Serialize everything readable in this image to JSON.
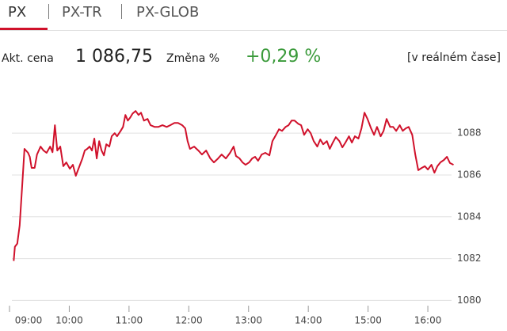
{
  "tabs": [
    "PX",
    "PX-TR",
    "PX-GLOB"
  ],
  "quote": {
    "price_label": "Akt. cena",
    "price": "1 086,75",
    "change_label": "Změna %",
    "change": "+0,29 %",
    "note": "[v reálném čase]"
  },
  "chart_data": {
    "type": "line",
    "color": "#d0112b",
    "grid": true,
    "xlim": [
      9,
      16.45
    ],
    "ylim": [
      1079.6,
      1089.9
    ],
    "xticks": [
      {
        "value": 9,
        "label": "09:00"
      },
      {
        "value": 10,
        "label": "10:00"
      },
      {
        "value": 11,
        "label": "11:00"
      },
      {
        "value": 12,
        "label": "12:00"
      },
      {
        "value": 13,
        "label": "13:00"
      },
      {
        "value": 14,
        "label": "14:00"
      },
      {
        "value": 15,
        "label": "15:00"
      },
      {
        "value": 16,
        "label": "16:00"
      }
    ],
    "yticks": [
      1080,
      1082,
      1084,
      1086,
      1088
    ],
    "x": [
      9.07,
      9.09,
      9.13,
      9.17,
      9.21,
      9.25,
      9.31,
      9.34,
      9.37,
      9.42,
      9.46,
      9.52,
      9.57,
      9.62,
      9.68,
      9.72,
      9.76,
      9.8,
      9.85,
      9.9,
      9.95,
      10.01,
      10.06,
      10.11,
      10.17,
      10.22,
      10.26,
      10.3,
      10.34,
      10.38,
      10.42,
      10.46,
      10.5,
      10.54,
      10.58,
      10.62,
      10.67,
      10.71,
      10.76,
      10.8,
      10.86,
      10.9,
      10.94,
      10.98,
      11.02,
      11.06,
      11.11,
      11.16,
      11.2,
      11.25,
      11.31,
      11.36,
      11.43,
      11.49,
      11.56,
      11.63,
      11.69,
      11.76,
      11.82,
      11.89,
      11.94,
      11.98,
      12.02,
      12.09,
      12.16,
      12.22,
      12.29,
      12.36,
      12.42,
      12.49,
      12.55,
      12.62,
      12.69,
      12.75,
      12.79,
      12.85,
      12.9,
      12.95,
      13.01,
      13.06,
      13.11,
      13.16,
      13.22,
      13.28,
      13.35,
      13.4,
      13.46,
      13.51,
      13.56,
      13.62,
      13.67,
      13.72,
      13.77,
      13.83,
      13.88,
      13.93,
      13.99,
      14.04,
      14.09,
      14.15,
      14.2,
      14.25,
      14.31,
      14.36,
      14.41,
      14.46,
      14.52,
      14.57,
      14.62,
      14.68,
      14.73,
      14.78,
      14.84,
      14.89,
      14.94,
      14.99,
      15.05,
      15.1,
      15.15,
      15.21,
      15.26,
      15.31,
      15.37,
      15.42,
      15.47,
      15.53,
      15.58,
      15.63,
      15.68,
      15.74,
      15.79,
      15.84,
      15.9,
      15.95,
      16.0,
      16.06,
      16.11,
      16.16,
      16.21,
      16.27,
      16.32,
      16.37,
      16.43
    ],
    "values": [
      1081.89,
      1082.57,
      1082.72,
      1083.58,
      1085.36,
      1087.25,
      1087.06,
      1086.87,
      1086.34,
      1086.34,
      1086.98,
      1087.36,
      1087.17,
      1087.06,
      1087.36,
      1087.09,
      1088.38,
      1087.17,
      1087.36,
      1086.42,
      1086.6,
      1086.3,
      1086.49,
      1085.96,
      1086.42,
      1086.79,
      1087.17,
      1087.25,
      1087.36,
      1087.17,
      1087.74,
      1086.79,
      1087.62,
      1087.17,
      1086.94,
      1087.47,
      1087.36,
      1087.85,
      1088.0,
      1087.85,
      1088.11,
      1088.3,
      1088.87,
      1088.6,
      1088.75,
      1088.94,
      1089.06,
      1088.87,
      1088.98,
      1088.6,
      1088.68,
      1088.38,
      1088.3,
      1088.3,
      1088.38,
      1088.3,
      1088.38,
      1088.49,
      1088.49,
      1088.38,
      1088.23,
      1087.62,
      1087.25,
      1087.36,
      1087.17,
      1086.98,
      1087.17,
      1086.79,
      1086.6,
      1086.79,
      1086.98,
      1086.79,
      1087.06,
      1087.36,
      1086.91,
      1086.79,
      1086.6,
      1086.49,
      1086.6,
      1086.79,
      1086.87,
      1086.68,
      1086.98,
      1087.06,
      1086.94,
      1087.62,
      1087.92,
      1088.19,
      1088.11,
      1088.3,
      1088.38,
      1088.6,
      1088.6,
      1088.45,
      1088.38,
      1087.92,
      1088.19,
      1088.0,
      1087.62,
      1087.36,
      1087.7,
      1087.47,
      1087.62,
      1087.25,
      1087.55,
      1087.81,
      1087.62,
      1087.32,
      1087.55,
      1087.85,
      1087.55,
      1087.85,
      1087.74,
      1088.23,
      1088.98,
      1088.68,
      1088.23,
      1087.92,
      1088.3,
      1087.85,
      1088.11,
      1088.68,
      1088.3,
      1088.3,
      1088.11,
      1088.38,
      1088.11,
      1088.23,
      1088.3,
      1087.92,
      1086.98,
      1086.23,
      1086.34,
      1086.42,
      1086.26,
      1086.49,
      1086.11,
      1086.42,
      1086.6,
      1086.72,
      1086.87,
      1086.57,
      1086.49
    ]
  }
}
